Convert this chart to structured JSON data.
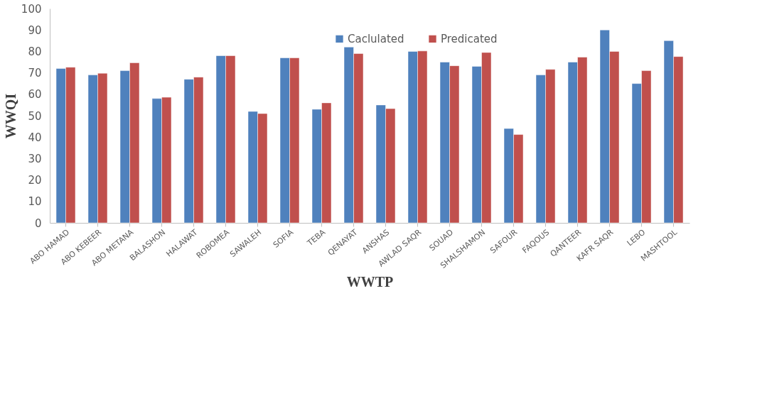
{
  "chart_data": {
    "type": "bar",
    "xlabel": "WWTP",
    "ylabel": "WWQI",
    "categories": [
      "ABO HAMAD",
      "ABO KEBEER",
      "ABO METANA",
      "BALASHON",
      "HALAWAT",
      "ROBOMEA",
      "SAWALEH",
      "SOFIA",
      "TEBA",
      "QENAYAT",
      "ANSHAS",
      "AWLAD SAQR",
      "SOUAD",
      "SHALSHAMON",
      "SAFOUR",
      "FAQOUS",
      "QANTEER",
      "KAFR SAQR",
      "LEBO",
      "MASHTOOL"
    ],
    "series": [
      {
        "name": "Caclulated",
        "color": "#4f81bd",
        "values": [
          72,
          69,
          71,
          58,
          67,
          78,
          52,
          77,
          53,
          82,
          55,
          80,
          75,
          73,
          44,
          69,
          75,
          90,
          65,
          85
        ]
      },
      {
        "name": "Predicated",
        "color": "#c0504d",
        "values": [
          72.6,
          69.8,
          74.7,
          58.6,
          68,
          78,
          51,
          77,
          56,
          79,
          53.3,
          80.2,
          73.3,
          79.5,
          41.2,
          71.6,
          77.3,
          80,
          71,
          77.6
        ]
      }
    ],
    "ylim": [
      0,
      100
    ],
    "yticks": [
      0,
      10,
      20,
      30,
      40,
      50,
      60,
      70,
      80,
      90,
      100
    ],
    "grid": false,
    "legend": "top"
  }
}
